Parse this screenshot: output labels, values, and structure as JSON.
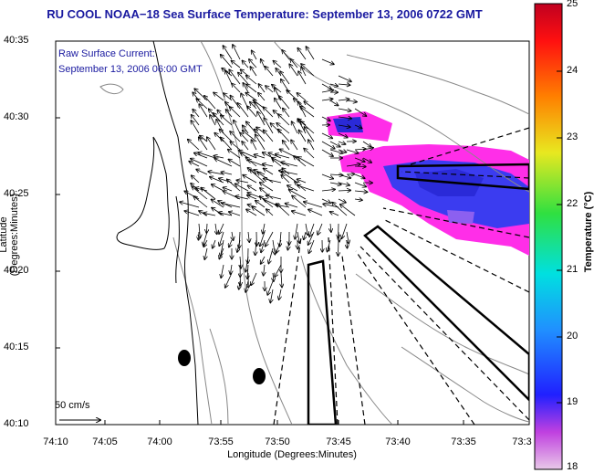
{
  "title": "RU COOL  NOAA−18  Sea Surface Temperature:  September 13, 2006 0722 GMT",
  "annotation": {
    "line1": "Raw Surface Current:",
    "line2": "September 13, 2006 06:00 GMT"
  },
  "axes": {
    "ylabel": "Latitude (Degrees:Minutes)",
    "xlabel": "Longitude (Degrees:Minutes)",
    "yticks": [
      "40:35",
      "40:30",
      "40:25",
      "40:20",
      "40:15",
      "40:10"
    ],
    "xticks": [
      "74:10",
      "74:05",
      "74:00",
      "73:55",
      "73:50",
      "73:45",
      "73:40",
      "73:35",
      "73:3"
    ]
  },
  "colorbar": {
    "title": "Temperature (°C)",
    "ticks": [
      "25",
      "24",
      "23",
      "22",
      "21",
      "20",
      "19",
      "18"
    ],
    "range": [
      18,
      25
    ]
  },
  "scale": {
    "label": "50 cm/s"
  },
  "colors": {
    "title": "#1a1aa0",
    "magenta": "#ff2ee8",
    "blue": "#3b3cf0"
  }
}
